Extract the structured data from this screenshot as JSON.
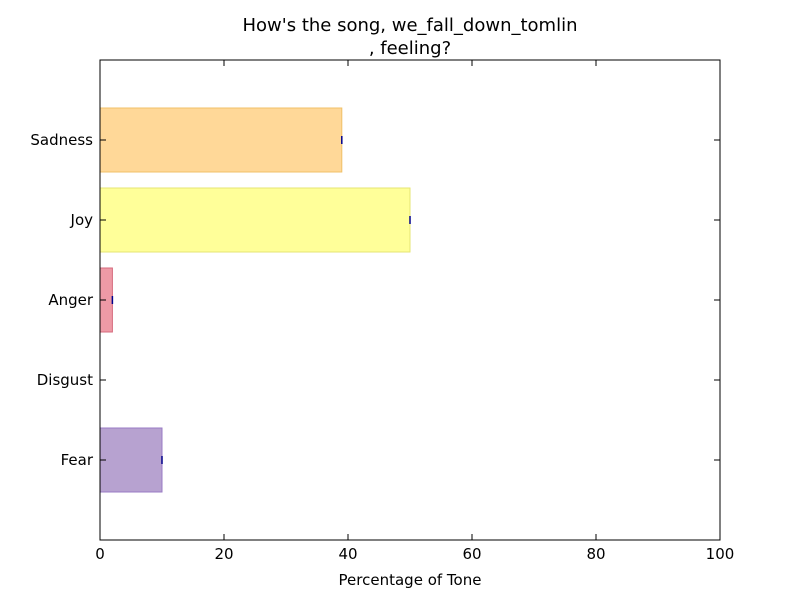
{
  "chart_data": {
    "type": "bar",
    "orientation": "horizontal",
    "title_line1": "How's the song, we_fall_down_tomlin",
    "title_line2": ", feeling?",
    "xlabel": "Percentage of Tone",
    "ylabel": "",
    "xlim": [
      0,
      100
    ],
    "x_ticks": [
      "0",
      "20",
      "40",
      "60",
      "80",
      "100"
    ],
    "grid": false,
    "categories": [
      "Fear",
      "Disgust",
      "Anger",
      "Joy",
      "Sadness"
    ],
    "values": [
      10,
      0,
      2,
      50,
      39
    ],
    "colors": [
      "#b7a2d0",
      "#4caf50",
      "#ee9aa6",
      "#ffff99",
      "#ffd898"
    ],
    "edge_colors": [
      "#9a7bc4",
      "#3a8a3d",
      "#d66a7c",
      "#e6e673",
      "#f0c068"
    ],
    "error_marker_color": "#00008b"
  }
}
